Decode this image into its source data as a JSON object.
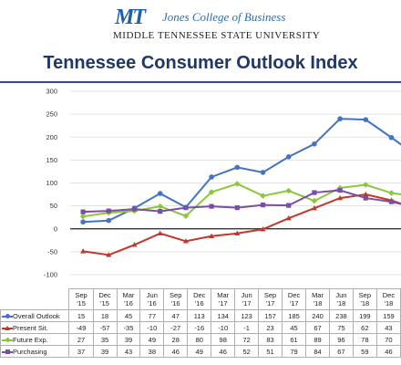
{
  "header": {
    "logo_text": "MT",
    "college": "Jones College of Business",
    "university": "Middle Tennessee State University"
  },
  "chart_data": {
    "type": "line",
    "title": "Tennessee Consumer Outlook Index",
    "categories": [
      [
        "Sep",
        "'15"
      ],
      [
        "Dec",
        "'15"
      ],
      [
        "Mar",
        "'16"
      ],
      [
        "Jun",
        "'16"
      ],
      [
        "Sep",
        "'16"
      ],
      [
        "Dec",
        "'16"
      ],
      [
        "Mar",
        "'17"
      ],
      [
        "Jun",
        "'17"
      ],
      [
        "Sep",
        "'17"
      ],
      [
        "Dec",
        "'17"
      ],
      [
        "Mar",
        "'18"
      ],
      [
        "Jun",
        "'18"
      ],
      [
        "Sep",
        "'18"
      ],
      [
        "Dec",
        "'18"
      ]
    ],
    "ylim": [
      -100,
      300
    ],
    "yticks": [
      -100,
      -50,
      0,
      50,
      100,
      150,
      200,
      250,
      300
    ],
    "grid": true,
    "series": [
      {
        "name": "Overall Outlook",
        "color": "#4472c4",
        "marker": "circle",
        "values": [
          15,
          18,
          45,
          77,
          47,
          113,
          134,
          123,
          157,
          185,
          240,
          238,
          199,
          159
        ]
      },
      {
        "name": "Present Sit.",
        "color": "#c0392b",
        "marker": "triangle",
        "values": [
          -49,
          -57,
          -35,
          -10,
          -27,
          -16,
          -10,
          -1,
          23,
          45,
          67,
          75,
          62,
          43
        ]
      },
      {
        "name": "Future Exp.",
        "color": "#8cc63f",
        "marker": "diamond",
        "values": [
          27,
          35,
          39,
          49,
          28,
          80,
          98,
          72,
          83,
          61,
          89,
          96,
          78,
          70
        ]
      },
      {
        "name": "Purchasing",
        "color": "#7b4ea3",
        "marker": "square",
        "values": [
          37,
          39,
          43,
          38,
          46,
          49,
          46,
          52,
          51,
          79,
          84,
          67,
          59,
          46
        ]
      }
    ]
  }
}
